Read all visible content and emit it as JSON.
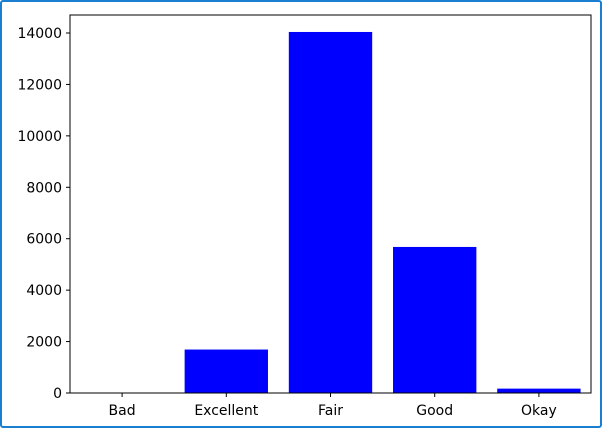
{
  "chart_data": {
    "type": "bar",
    "categories": [
      "Bad",
      "Excellent",
      "Fair",
      "Good",
      "Okay"
    ],
    "values": [
      5,
      1690,
      14040,
      5680,
      170
    ],
    "ylim": [
      0,
      14700
    ],
    "yticks": [
      0,
      2000,
      4000,
      6000,
      8000,
      10000,
      12000,
      14000
    ],
    "title": "",
    "xlabel": "",
    "ylabel": "",
    "bar_color": "#0000ff",
    "grid": false
  },
  "frame_color": "#1a7fd1"
}
